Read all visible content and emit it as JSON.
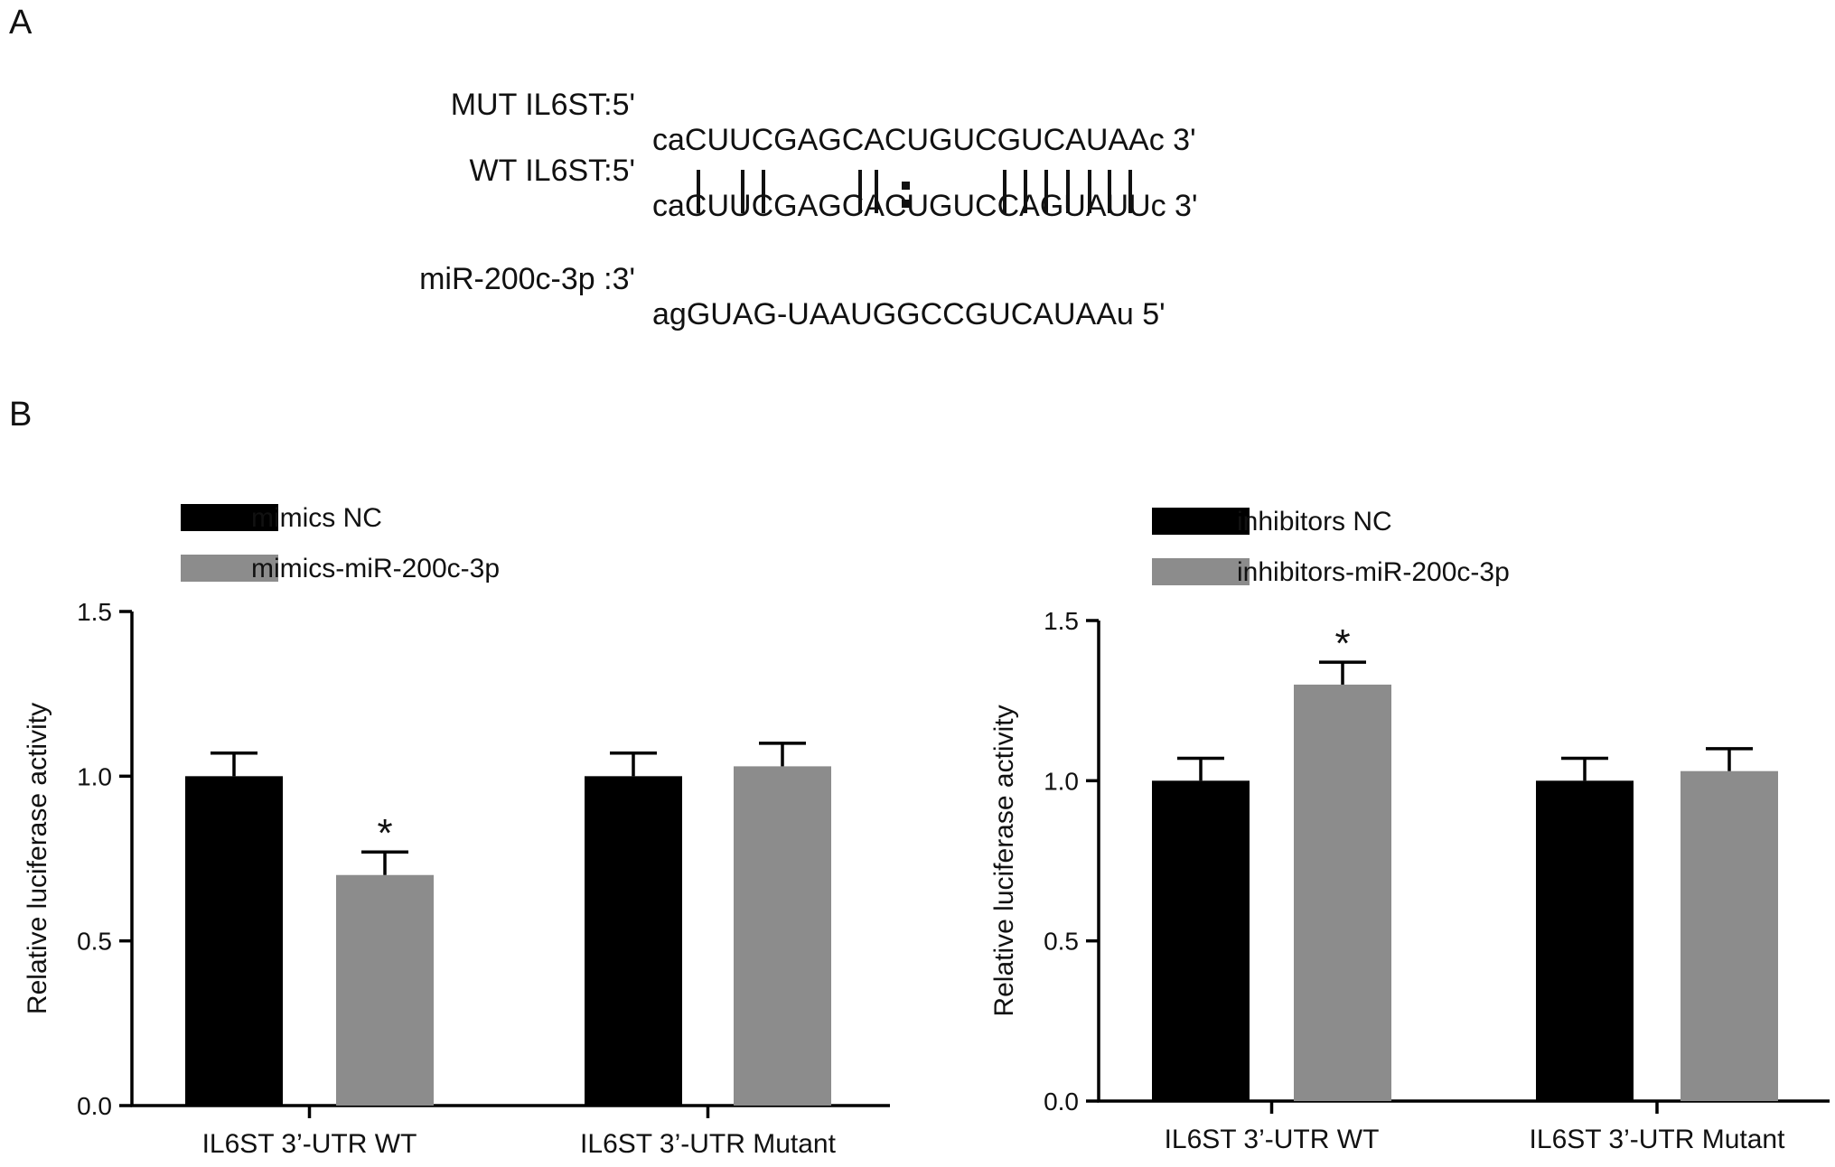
{
  "panels": {
    "a": "A",
    "b": "B"
  },
  "sequences": {
    "mut": {
      "label": "MUT IL6ST:5'",
      "seq": "caCUUCGAGCACUGUCGUCAUAAc 3'"
    },
    "wt": {
      "label": "WT IL6ST:5'",
      "seq": "caCUUCGAGCACUGUCCAGUAUUc 3'"
    },
    "mirna": {
      "label": "miR-200c-3p :3'",
      "seq": "agGUAG-UAAUGGCCGUCAUAAu 5'"
    }
  },
  "pairing": [
    "|",
    "|",
    "|",
    "|",
    "|",
    ":",
    "|",
    "|",
    "|",
    "|",
    "|",
    "|",
    "|"
  ],
  "colors": {
    "black_bar": "#000000",
    "gray_bar": "#8c8c8c",
    "axis": "#000000"
  },
  "chart_data": [
    {
      "type": "bar",
      "title": "",
      "ylabel": "Relative luciferase activity",
      "xlabel": "",
      "ylim": [
        0,
        1.5
      ],
      "yticks": [
        "0.0",
        "0.5",
        "1.0",
        "1.5"
      ],
      "categories": [
        "IL6ST 3’-UTR WT",
        "IL6ST 3’-UTR Mutant"
      ],
      "series": [
        {
          "name": "mimics NC",
          "color": "#000000",
          "values": [
            1.0,
            1.0
          ],
          "errors": [
            0.07,
            0.07
          ]
        },
        {
          "name": "mimics-miR-200c-3p",
          "color": "#8c8c8c",
          "values": [
            0.7,
            1.03
          ],
          "errors": [
            0.07,
            0.07
          ]
        }
      ],
      "annotations": [
        {
          "text": "*",
          "category": 0,
          "series": 1
        }
      ],
      "legend": "top-left",
      "grid": false
    },
    {
      "type": "bar",
      "title": "",
      "ylabel": "Relative luciferase activity",
      "xlabel": "",
      "ylim": [
        0,
        1.5
      ],
      "yticks": [
        "0.0",
        "0.5",
        "1.0",
        "1.5"
      ],
      "categories": [
        "IL6ST 3’-UTR WT",
        "IL6ST 3’-UTR Mutant"
      ],
      "series": [
        {
          "name": "inhibitors NC",
          "color": "#000000",
          "values": [
            1.0,
            1.0
          ],
          "errors": [
            0.07,
            0.07
          ]
        },
        {
          "name": "inhibitors-miR-200c-3p",
          "color": "#8c8c8c",
          "values": [
            1.3,
            1.03
          ],
          "errors": [
            0.07,
            0.07
          ]
        }
      ],
      "annotations": [
        {
          "text": "*",
          "category": 0,
          "series": 1
        }
      ],
      "legend": "top-left",
      "grid": false
    }
  ]
}
